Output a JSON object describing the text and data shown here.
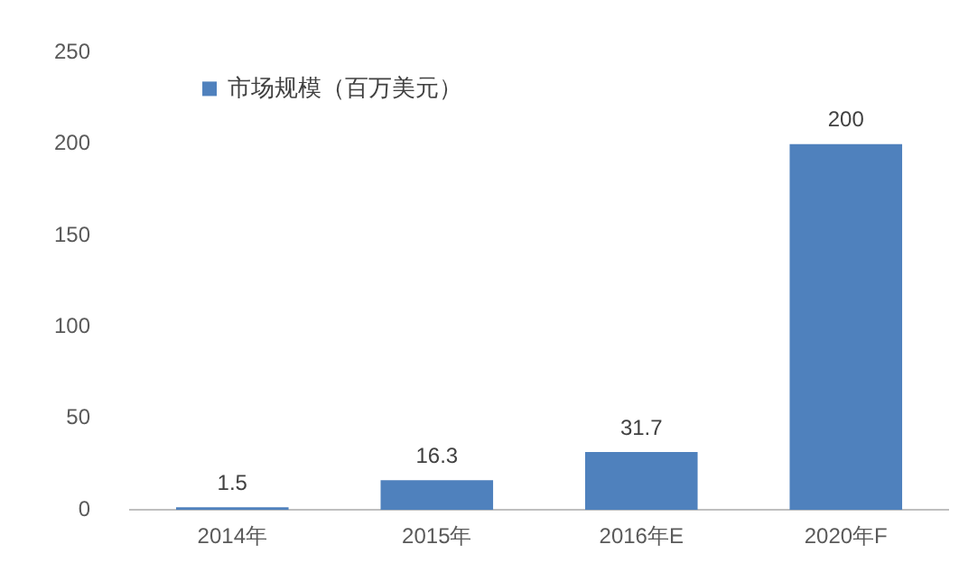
{
  "chart_data": {
    "type": "bar",
    "categories": [
      "2014年",
      "2015年",
      "2016年E",
      "2020年F"
    ],
    "series": [
      {
        "name": "市场规模（百万美元）",
        "color": "#4f81bd",
        "values": [
          1.5,
          16.3,
          31.7,
          200
        ]
      }
    ],
    "ylim": [
      0,
      250
    ],
    "yticks": [
      0,
      50,
      100,
      150,
      200,
      250
    ],
    "grid": false,
    "legend": "top left",
    "data_labels": true
  }
}
